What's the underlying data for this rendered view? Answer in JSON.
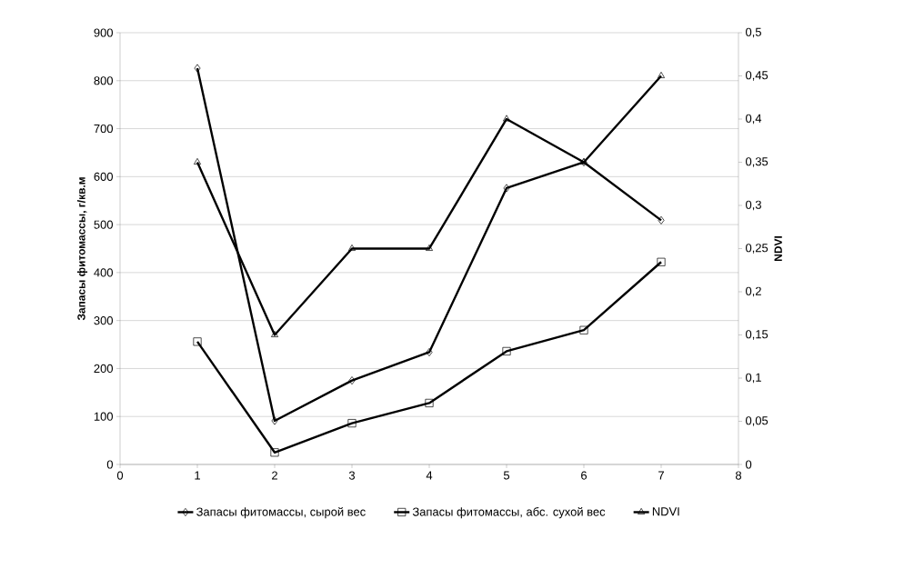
{
  "chart_data": {
    "type": "line",
    "ylabel": "Запасы фитомассы, г/кв.м",
    "y2label": "NDVI",
    "x": [
      1,
      2,
      3,
      4,
      5,
      6,
      7
    ],
    "series": [
      {
        "name": "Запасы фитомассы, сырой вес",
        "color": "#000000",
        "marker": "diamond",
        "values": [
          826,
          91,
          175,
          234,
          576,
          630,
          509
        ]
      },
      {
        "name": "Запасы фитомассы, абс. сухой вес",
        "color": "#000000",
        "marker": "square",
        "values": [
          256,
          25,
          86,
          128,
          236,
          280,
          422
        ]
      },
      {
        "name": "NDVI",
        "color": "#000000",
        "marker": "triangle",
        "axis": "y2",
        "values": [
          0.35,
          0.15,
          0.25,
          0.25,
          0.4,
          0.35,
          0.45
        ]
      }
    ],
    "xlim": [
      0,
      8
    ],
    "xticks": [
      0,
      1,
      2,
      3,
      4,
      5,
      6,
      7,
      8
    ],
    "ylim": [
      0,
      900
    ],
    "yticks": [
      0,
      100,
      200,
      300,
      400,
      500,
      600,
      700,
      800,
      900
    ],
    "y2lim": [
      0,
      0.5
    ],
    "y2ticks": [
      0,
      {
        "value": 0.05,
        "label": "0,05"
      },
      {
        "value": 0.1,
        "label": "0,1"
      },
      {
        "value": 0.15,
        "label": "0,15"
      },
      {
        "value": 0.2,
        "label": "0,2"
      },
      {
        "value": 0.25,
        "label": "0,25"
      },
      {
        "value": 0.3,
        "label": "0,3"
      },
      {
        "value": 0.35,
        "label": "0,35"
      },
      {
        "value": 0.4,
        "label": "0,4"
      },
      {
        "value": 0.45,
        "label": "0,45"
      },
      {
        "value": 0.5,
        "label": "0,5"
      }
    ],
    "grid": "y",
    "legend": "bottom",
    "line_style": "solid"
  }
}
